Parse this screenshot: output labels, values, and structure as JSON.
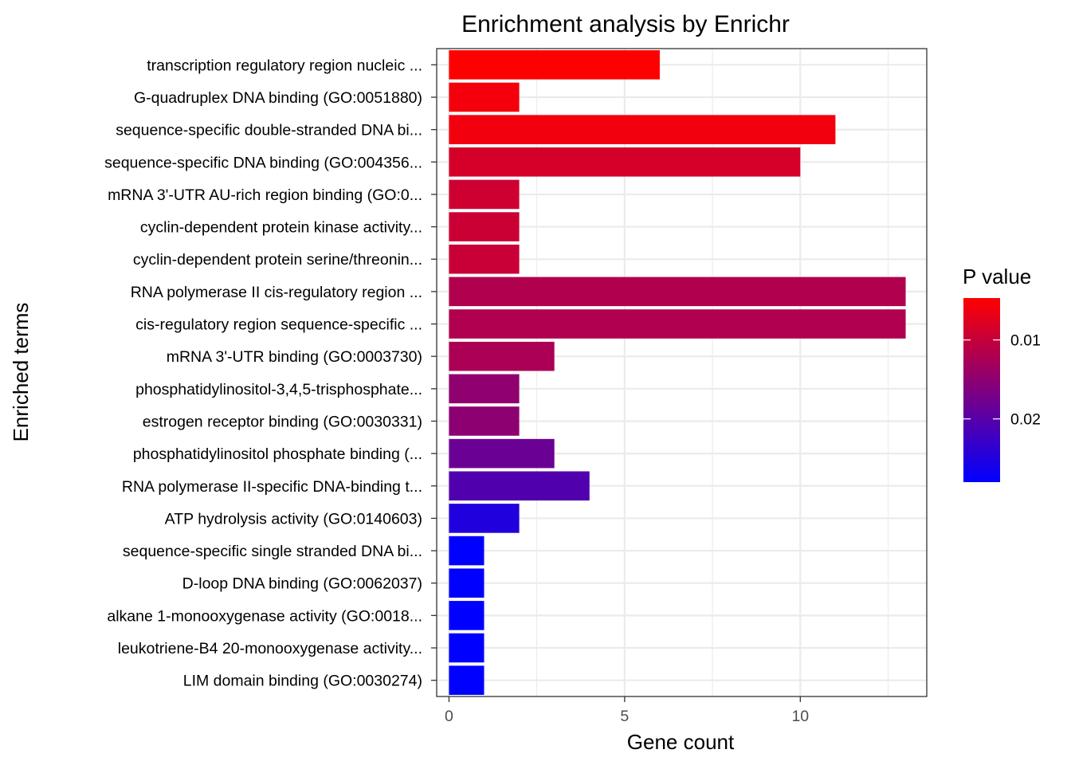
{
  "chart_data": {
    "type": "bar",
    "orientation": "horizontal",
    "title": "Enrichment analysis by Enrichr",
    "xlabel": "Gene count",
    "ylabel": "Enriched terms",
    "xlim": [
      -0.35,
      13.6
    ],
    "x_ticks": [
      0,
      5,
      10
    ],
    "grid": true,
    "categories": [
      "transcription regulatory region nucleic ...",
      "G-quadruplex DNA binding (GO:0051880)",
      "sequence-specific double-stranded DNA bi...",
      "sequence-specific DNA binding (GO:004356...",
      "mRNA 3'-UTR AU-rich region binding (GO:0...",
      "cyclin-dependent protein kinase activity...",
      "cyclin-dependent protein serine/threonin...",
      "RNA polymerase II cis-regulatory region ...",
      "cis-regulatory region sequence-specific ...",
      "mRNA 3'-UTR binding (GO:0003730)",
      "phosphatidylinositol-3,4,5-trisphosphate...",
      "estrogen receptor binding (GO:0030331)",
      "phosphatidylinositol phosphate binding (...",
      "RNA polymerase II-specific DNA-binding t...",
      "ATP hydrolysis activity (GO:0140603)",
      "sequence-specific single stranded DNA bi...",
      "D-loop DNA binding (GO:0062037)",
      "alkane 1-monooxygenase activity (GO:0018...",
      "leukotriene-B4 20-monooxygenase activity...",
      "LIM domain binding (GO:0030274)"
    ],
    "values": [
      6,
      2,
      11,
      10,
      2,
      2,
      2,
      13,
      13,
      3,
      2,
      2,
      3,
      4,
      2,
      1,
      1,
      1,
      1,
      1
    ],
    "p_values": [
      0.0047,
      0.0058,
      0.0059,
      0.0085,
      0.0092,
      0.0095,
      0.0097,
      0.0118,
      0.0119,
      0.0124,
      0.0148,
      0.0151,
      0.0182,
      0.0206,
      0.025,
      0.028,
      0.028,
      0.028,
      0.028,
      0.028
    ],
    "legend": {
      "title": "P value",
      "position": "right",
      "range": [
        0.0047,
        0.028
      ],
      "ticks": [
        0.01,
        0.02
      ],
      "tick_labels": [
        "0.01",
        "0.02"
      ],
      "low_color": "#ff0000",
      "high_color": "#0000ff"
    },
    "colors": {
      "grid": "#ebebeb",
      "panel_border": "#333333",
      "text": "#000000",
      "tick_text": "#4d4d4d"
    }
  }
}
